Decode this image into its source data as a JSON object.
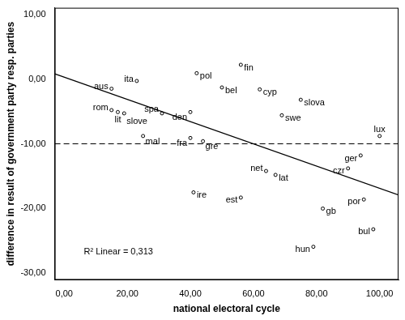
{
  "chart_data": {
    "type": "scatter",
    "x_label": "national electoral cycle",
    "y_label": "difference in result of government party resp. parties",
    "annotation": "R² Linear = 0,313",
    "x": [
      15,
      23,
      15,
      17,
      19,
      31,
      25,
      40,
      40,
      44,
      42,
      41,
      50,
      56,
      62,
      75,
      69,
      56,
      64,
      67,
      82,
      79,
      90,
      94,
      100,
      95,
      98
    ],
    "values": [
      -1.5,
      -0.3,
      -4.8,
      -5.1,
      -5.3,
      -5.3,
      -8.8,
      -5.1,
      -9.1,
      -9.6,
      0.9,
      -17.5,
      -1.3,
      2.2,
      -1.6,
      -3.2,
      -5.6,
      -18.3,
      -14.2,
      -14.8,
      -20,
      -25.9,
      -13.8,
      -11.8,
      -8.8,
      -18.6,
      -23.2
    ],
    "point_labels": [
      "aus",
      "ita",
      "rom",
      "lit",
      "slove",
      "spa",
      "mal",
      "den",
      "fra",
      "gre",
      "pol",
      "ire",
      "bel",
      "fin",
      "cyp",
      "slova",
      "swe",
      "est",
      "net",
      "lat",
      "gb",
      "hun",
      "czr",
      "ger",
      "lux",
      "por",
      "bul"
    ],
    "color": "#000000",
    "marker": "circle",
    "xlim": [
      -3,
      106
    ],
    "ylim": [
      -31,
      11
    ],
    "xticks": [
      {
        "value": 0,
        "label": "0,00"
      },
      {
        "value": 20,
        "label": "20,00"
      },
      {
        "value": 40,
        "label": "40,00"
      },
      {
        "value": 60,
        "label": "60,00"
      },
      {
        "value": 80,
        "label": "80,00"
      },
      {
        "value": 100,
        "label": "100,00"
      }
    ],
    "yticks": [
      {
        "value": -30,
        "label": "-30,00"
      },
      {
        "value": -20,
        "label": "-20,00"
      },
      {
        "value": -10,
        "label": "-10,00"
      },
      {
        "value": 0,
        "label": "0,00"
      },
      {
        "value": 10,
        "label": "10,00"
      }
    ],
    "grid": false,
    "regression_line": {
      "x": [
        -3,
        106
      ],
      "values": [
        0.8,
        -17.9
      ],
      "line_style": "solid"
    },
    "reference_line": {
      "value": -10,
      "line_style": "dashed"
    }
  }
}
